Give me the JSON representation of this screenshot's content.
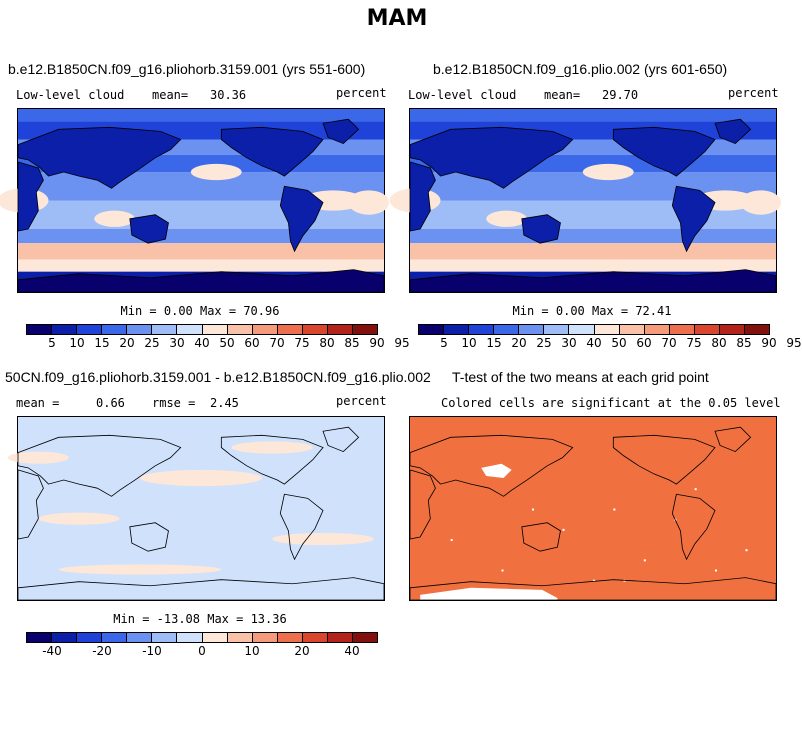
{
  "figure_title": "MAM",
  "colors": {
    "scale": [
      "#08006d",
      "#0b1fa8",
      "#1f43d8",
      "#3a68e8",
      "#6b92f0",
      "#9ebcf6",
      "#cfe1fb",
      "#fde7d9",
      "#f9c2a8",
      "#f59a7a",
      "#ee6f4e",
      "#d9452d",
      "#b3231a",
      "#82100d"
    ],
    "significant": "#f07040",
    "land_line": "#000000"
  },
  "panels": [
    {
      "title": "b.e12.B1850CN.f09_g16.pliohorb.3159.001 (yrs 551-600)",
      "left_label": "Low-level cloud",
      "stat_label": "mean=",
      "stat_value": "30.36",
      "units": "percent",
      "minmax": "Min =   0.00 Max =  70.96",
      "colorbar_ticks": [
        "5",
        "10",
        "15",
        "20",
        "25",
        "30",
        "40",
        "50",
        "60",
        "70",
        "75",
        "80",
        "85",
        "90",
        "95"
      ]
    },
    {
      "title": "b.e12.B1850CN.f09_g16.plio.002 (yrs 601-650)",
      "left_label": "Low-level cloud",
      "stat_label": "mean=",
      "stat_value": "29.70",
      "units": "percent",
      "minmax": "Min =   0.00 Max =  72.41",
      "colorbar_ticks": [
        "5",
        "10",
        "15",
        "20",
        "25",
        "30",
        "40",
        "50",
        "60",
        "70",
        "75",
        "80",
        "85",
        "90",
        "95"
      ]
    },
    {
      "title": "50CN.f09_g16.pliohorb.3159.001 - b.e12.B1850CN.f09_g16.plio.002",
      "left_label": "mean =",
      "left_value": "0.66",
      "stat_label": "rmse =",
      "stat_value": "2.45",
      "units": "percent",
      "minmax": "Min = -13.08 Max =  13.36",
      "colorbar_ticks": [
        "-40",
        "-20",
        "-10",
        "0",
        "10",
        "20",
        "40"
      ]
    },
    {
      "title": "T-test of the two means at each grid point",
      "subtitle": "Colored cells are significant at the 0.05 level"
    }
  ],
  "chart_data": [
    {
      "type": "heatmap",
      "title": "b.e12.B1850CN.f09_g16.pliohorb.3159.001 (yrs 551-600)",
      "variable": "Low-level cloud",
      "units": "percent",
      "mean": 30.36,
      "min": 0.0,
      "max": 70.96,
      "levels": [
        5,
        10,
        15,
        20,
        25,
        30,
        40,
        50,
        60,
        70,
        75,
        80,
        85,
        90,
        95
      ]
    },
    {
      "type": "heatmap",
      "title": "b.e12.B1850CN.f09_g16.plio.002 (yrs 601-650)",
      "variable": "Low-level cloud",
      "units": "percent",
      "mean": 29.7,
      "min": 0.0,
      "max": 72.41,
      "levels": [
        5,
        10,
        15,
        20,
        25,
        30,
        40,
        50,
        60,
        70,
        75,
        80,
        85,
        90,
        95
      ]
    },
    {
      "type": "heatmap",
      "title": "50CN.f09_g16.pliohorb.3159.001 - b.e12.B1850CN.f09_g16.plio.002",
      "units": "percent",
      "mean": 0.66,
      "rmse": 2.45,
      "min": -13.08,
      "max": 13.36,
      "levels": [
        -40,
        -20,
        -10,
        0,
        10,
        20,
        40
      ]
    },
    {
      "type": "heatmap",
      "title": "T-test of the two means at each grid point",
      "subtitle": "Colored cells are significant at the 0.05 level"
    }
  ]
}
